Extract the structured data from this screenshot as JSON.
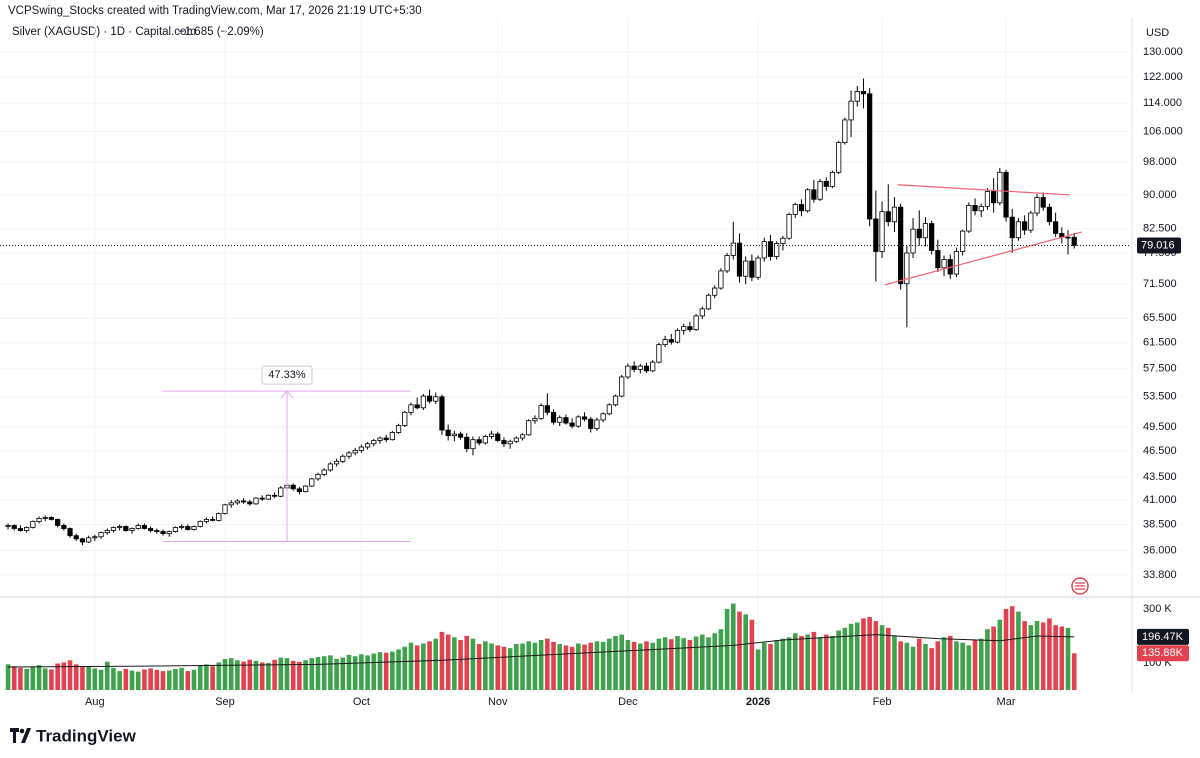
{
  "header": {
    "attribution": "VCPSwing_Stocks created with TradingView.com, Mar 17, 2026 21:19 UTC+5:30",
    "logo": "TradingView"
  },
  "chart_data": {
    "type": "candlestick",
    "title": "Silver (XAGUSD) · 1D · Capital.com",
    "change": "−1.685 (−2.09%)",
    "y_axis_label": "USD",
    "log_scale": true,
    "grid": true,
    "ylim": [
      32.1,
      142
    ],
    "yticks": [
      {
        "value": 130,
        "label": "130.000"
      },
      {
        "value": 122,
        "label": "122.000"
      },
      {
        "value": 114,
        "label": "114.000"
      },
      {
        "value": 106,
        "label": "106.000"
      },
      {
        "value": 98,
        "label": "98.000"
      },
      {
        "value": 90,
        "label": "90.000"
      },
      {
        "value": 82.5,
        "label": "82.500"
      },
      {
        "value": 77.5,
        "label": "77.500"
      },
      {
        "value": 71.5,
        "label": "71.500"
      },
      {
        "value": 65.5,
        "label": "65.500"
      },
      {
        "value": 61.5,
        "label": "61.500"
      },
      {
        "value": 57.5,
        "label": "57.500"
      },
      {
        "value": 53.5,
        "label": "53.500"
      },
      {
        "value": 49.5,
        "label": "49.500"
      },
      {
        "value": 46.5,
        "label": "46.500"
      },
      {
        "value": 43.5,
        "label": "43.500"
      },
      {
        "value": 41,
        "label": "41.000"
      },
      {
        "value": 38.5,
        "label": "38.500"
      },
      {
        "value": 36,
        "label": "36.000"
      },
      {
        "value": 33.8,
        "label": "33.800"
      }
    ],
    "xlim": [
      -1.3,
      181
    ],
    "xticks": [
      {
        "value": 14,
        "label": "Aug"
      },
      {
        "value": 35,
        "label": "Sep"
      },
      {
        "value": 57,
        "label": "Oct"
      },
      {
        "value": 79,
        "label": "Nov"
      },
      {
        "value": 100,
        "label": "Dec"
      },
      {
        "value": 121,
        "label": "2026"
      },
      {
        "value": 141,
        "label": "Feb"
      },
      {
        "value": 161,
        "label": "Mar"
      }
    ],
    "up_color": "#ffffff",
    "down_color": "#000000",
    "outline_color": "#000000",
    "candles": [
      [
        38.3,
        38.6,
        38.0,
        38.4
      ],
      [
        38.4,
        38.5,
        37.9,
        38.1
      ],
      [
        38.1,
        38.4,
        37.8,
        37.9
      ],
      [
        37.9,
        38.3,
        37.7,
        38.2
      ],
      [
        38.2,
        38.9,
        38.1,
        38.8
      ],
      [
        38.8,
        39.3,
        38.6,
        39.1
      ],
      [
        39.1,
        39.4,
        38.8,
        39.2
      ],
      [
        39.2,
        39.3,
        38.9,
        39.0
      ],
      [
        39.0,
        39.1,
        38.2,
        38.4
      ],
      [
        38.4,
        38.6,
        37.9,
        38.1
      ],
      [
        38.1,
        38.2,
        37.2,
        37.4
      ],
      [
        37.4,
        37.6,
        36.9,
        37.1
      ],
      [
        37.1,
        37.2,
        36.5,
        36.8
      ],
      [
        36.8,
        37.4,
        36.7,
        37.2
      ],
      [
        37.2,
        37.5,
        36.9,
        37.3
      ],
      [
        37.3,
        37.8,
        37.1,
        37.7
      ],
      [
        37.7,
        38.1,
        37.5,
        37.9
      ],
      [
        37.9,
        38.3,
        37.7,
        38.2
      ],
      [
        38.2,
        38.5,
        37.9,
        38.3
      ],
      [
        38.3,
        38.4,
        37.8,
        37.9
      ],
      [
        37.9,
        38.2,
        37.6,
        38.1
      ],
      [
        38.1,
        38.6,
        38.0,
        38.4
      ],
      [
        38.4,
        38.6,
        38.0,
        38.1
      ],
      [
        38.1,
        38.3,
        37.7,
        37.9
      ],
      [
        37.9,
        38.1,
        37.6,
        37.8
      ],
      [
        37.8,
        38.0,
        37.4,
        37.6
      ],
      [
        37.6,
        37.9,
        37.3,
        37.8
      ],
      [
        37.8,
        38.3,
        37.7,
        38.2
      ],
      [
        38.2,
        38.5,
        38.0,
        38.3
      ],
      [
        38.3,
        38.5,
        37.9,
        38.0
      ],
      [
        38.0,
        38.4,
        37.9,
        38.3
      ],
      [
        38.3,
        38.9,
        38.2,
        38.8
      ],
      [
        38.8,
        39.2,
        38.6,
        39.0
      ],
      [
        39.0,
        39.3,
        38.8,
        38.9
      ],
      [
        38.9,
        39.7,
        38.8,
        39.6
      ],
      [
        39.6,
        40.6,
        39.5,
        40.5
      ],
      [
        40.5,
        41.0,
        40.2,
        40.7
      ],
      [
        40.7,
        41.1,
        40.5,
        40.9
      ],
      [
        40.9,
        41.2,
        40.6,
        40.8
      ],
      [
        40.8,
        41.0,
        40.4,
        40.6
      ],
      [
        40.6,
        41.3,
        40.5,
        41.2
      ],
      [
        41.2,
        41.5,
        40.9,
        41.1
      ],
      [
        41.1,
        41.6,
        41.0,
        41.5
      ],
      [
        41.5,
        41.8,
        41.2,
        41.4
      ],
      [
        41.4,
        42.5,
        41.3,
        42.3
      ],
      [
        42.3,
        42.9,
        42.1,
        42.6
      ],
      [
        42.6,
        42.8,
        42.0,
        42.2
      ],
      [
        42.2,
        42.4,
        41.6,
        41.9
      ],
      [
        41.9,
        42.6,
        41.8,
        42.5
      ],
      [
        42.5,
        43.4,
        42.4,
        43.3
      ],
      [
        43.3,
        44.0,
        43.1,
        43.8
      ],
      [
        43.8,
        44.5,
        43.6,
        44.3
      ],
      [
        44.3,
        45.2,
        44.1,
        45.0
      ],
      [
        45.0,
        45.6,
        44.7,
        45.3
      ],
      [
        45.3,
        46.1,
        45.1,
        45.9
      ],
      [
        45.9,
        46.5,
        45.6,
        46.3
      ],
      [
        46.3,
        46.9,
        46.0,
        46.6
      ],
      [
        46.6,
        47.3,
        46.3,
        47.0
      ],
      [
        47.0,
        47.6,
        46.7,
        47.4
      ],
      [
        47.4,
        48.0,
        47.1,
        47.8
      ],
      [
        47.8,
        48.3,
        47.4,
        48.1
      ],
      [
        48.1,
        48.5,
        47.6,
        47.9
      ],
      [
        47.9,
        49.0,
        47.8,
        48.8
      ],
      [
        48.8,
        49.9,
        48.6,
        49.7
      ],
      [
        49.7,
        51.6,
        49.5,
        51.4
      ],
      [
        51.4,
        52.7,
        51.0,
        52.4
      ],
      [
        52.4,
        53.4,
        51.8,
        52.0
      ],
      [
        52.0,
        53.9,
        51.7,
        53.6
      ],
      [
        53.6,
        54.5,
        52.6,
        52.9
      ],
      [
        52.9,
        54.1,
        52.5,
        53.5
      ],
      [
        53.5,
        53.8,
        48.5,
        49.1
      ],
      [
        49.1,
        49.8,
        47.8,
        48.4
      ],
      [
        48.4,
        49.0,
        47.7,
        48.6
      ],
      [
        48.6,
        48.9,
        47.9,
        48.2
      ],
      [
        48.2,
        48.7,
        46.4,
        46.8
      ],
      [
        46.8,
        48.3,
        46.0,
        47.9
      ],
      [
        47.9,
        48.3,
        47.2,
        47.5
      ],
      [
        47.5,
        48.5,
        47.3,
        48.3
      ],
      [
        48.3,
        49.0,
        48.0,
        48.6
      ],
      [
        48.6,
        48.9,
        47.6,
        47.8
      ],
      [
        47.8,
        48.2,
        47.0,
        47.4
      ],
      [
        47.4,
        47.9,
        46.8,
        47.7
      ],
      [
        47.7,
        48.3,
        47.5,
        48.1
      ],
      [
        48.1,
        48.7,
        47.8,
        48.5
      ],
      [
        48.5,
        50.5,
        48.4,
        50.3
      ],
      [
        50.3,
        51.0,
        49.9,
        50.6
      ],
      [
        50.6,
        52.6,
        50.4,
        52.3
      ],
      [
        52.3,
        54.0,
        51.0,
        51.4
      ],
      [
        51.4,
        51.8,
        49.8,
        50.1
      ],
      [
        50.1,
        51.0,
        49.6,
        50.7
      ],
      [
        50.7,
        51.1,
        49.8,
        50.0
      ],
      [
        50.0,
        50.6,
        49.3,
        49.6
      ],
      [
        49.6,
        51.0,
        49.4,
        50.8
      ],
      [
        50.8,
        51.4,
        50.2,
        50.5
      ],
      [
        50.5,
        50.8,
        48.8,
        49.3
      ],
      [
        49.3,
        50.7,
        49.0,
        50.4
      ],
      [
        50.4,
        51.4,
        50.1,
        51.2
      ],
      [
        51.2,
        52.6,
        51.0,
        52.4
      ],
      [
        52.4,
        53.8,
        52.2,
        53.6
      ],
      [
        53.6,
        56.6,
        53.4,
        56.3
      ],
      [
        56.3,
        58.3,
        56.0,
        57.9
      ],
      [
        57.9,
        58.6,
        57.0,
        57.4
      ],
      [
        57.4,
        58.2,
        56.8,
        57.9
      ],
      [
        57.9,
        58.4,
        56.9,
        57.2
      ],
      [
        57.2,
        58.8,
        57.0,
        58.5
      ],
      [
        58.5,
        61.5,
        58.3,
        61.2
      ],
      [
        61.2,
        62.6,
        60.8,
        62.0
      ],
      [
        62.0,
        62.9,
        61.2,
        61.6
      ],
      [
        61.6,
        63.8,
        61.4,
        63.5
      ],
      [
        63.5,
        64.6,
        62.8,
        64.1
      ],
      [
        64.1,
        64.9,
        63.2,
        63.6
      ],
      [
        63.6,
        66.2,
        63.4,
        65.9
      ],
      [
        65.9,
        67.5,
        65.4,
        67.1
      ],
      [
        67.1,
        69.8,
        66.9,
        69.5
      ],
      [
        69.5,
        71.3,
        69.0,
        70.8
      ],
      [
        70.8,
        74.5,
        70.5,
        74.0
      ],
      [
        74.0,
        77.5,
        73.6,
        77.0
      ],
      [
        77.0,
        84.0,
        76.2,
        79.5
      ],
      [
        79.5,
        81.5,
        71.8,
        73.0
      ],
      [
        73.0,
        76.8,
        71.5,
        75.9
      ],
      [
        75.9,
        77.2,
        72.1,
        72.8
      ],
      [
        72.8,
        77.0,
        72.3,
        76.5
      ],
      [
        76.5,
        80.6,
        75.8,
        79.8
      ],
      [
        79.8,
        81.2,
        76.0,
        76.8
      ],
      [
        76.8,
        79.9,
        76.2,
        79.4
      ],
      [
        79.4,
        81.0,
        78.0,
        80.5
      ],
      [
        80.5,
        86.0,
        80.2,
        85.6
      ],
      [
        85.6,
        88.2,
        84.8,
        87.8
      ],
      [
        87.8,
        89.0,
        85.2,
        86.4
      ],
      [
        86.4,
        91.6,
        86.0,
        91.2
      ],
      [
        91.2,
        93.6,
        88.2,
        89.0
      ],
      [
        89.0,
        93.8,
        88.6,
        93.2
      ],
      [
        93.2,
        94.2,
        91.0,
        92.0
      ],
      [
        92.0,
        95.8,
        91.6,
        95.4
      ],
      [
        95.4,
        103.5,
        95.0,
        103.0
      ],
      [
        103.0,
        109.8,
        102.5,
        109.2
      ],
      [
        109.2,
        117.8,
        104.5,
        114.6
      ],
      [
        114.6,
        119.2,
        113.0,
        117.5
      ],
      [
        117.5,
        121.5,
        112.5,
        116.8
      ],
      [
        116.8,
        118.6,
        83.0,
        84.6
      ],
      [
        84.6,
        91.0,
        72.0,
        77.8
      ],
      [
        77.8,
        88.5,
        76.5,
        86.2
      ],
      [
        86.2,
        92.5,
        83.0,
        84.0
      ],
      [
        84.0,
        89.5,
        81.8,
        87.2
      ],
      [
        87.2,
        88.0,
        70.5,
        71.6
      ],
      [
        71.6,
        79.0,
        64.0,
        77.5
      ],
      [
        77.5,
        84.8,
        76.5,
        82.4
      ],
      [
        82.4,
        86.5,
        79.0,
        80.6
      ],
      [
        80.6,
        85.0,
        78.8,
        83.6
      ],
      [
        83.6,
        84.2,
        77.2,
        78.0
      ],
      [
        78.0,
        80.2,
        73.8,
        74.6
      ],
      [
        74.6,
        77.0,
        73.0,
        76.2
      ],
      [
        76.2,
        77.2,
        72.5,
        73.4
      ],
      [
        73.4,
        78.6,
        72.8,
        77.8
      ],
      [
        77.8,
        82.3,
        77.0,
        82.0
      ],
      [
        82.0,
        88.3,
        81.6,
        87.6
      ],
      [
        87.6,
        89.2,
        85.4,
        86.4
      ],
      [
        86.4,
        88.0,
        85.0,
        87.4
      ],
      [
        87.4,
        91.6,
        86.6,
        90.8
      ],
      [
        90.8,
        94.0,
        86.0,
        88.2
      ],
      [
        88.2,
        96.5,
        87.6,
        95.4
      ],
      [
        95.4,
        96.0,
        84.0,
        85.0
      ],
      [
        85.0,
        86.8,
        77.5,
        80.6
      ],
      [
        80.6,
        84.8,
        80.0,
        84.0
      ],
      [
        84.0,
        85.4,
        81.2,
        82.2
      ],
      [
        82.2,
        86.4,
        81.6,
        85.9
      ],
      [
        85.9,
        90.2,
        85.2,
        89.4
      ],
      [
        89.4,
        90.6,
        86.4,
        87.2
      ],
      [
        87.2,
        88.0,
        83.2,
        84.0
      ],
      [
        84.0,
        86.0,
        80.8,
        81.5
      ],
      [
        81.5,
        82.8,
        79.4,
        80.7
      ],
      [
        80.7,
        82.2,
        77.2,
        80.701
      ],
      [
        80.701,
        81.6,
        78.4,
        79.016
      ]
    ],
    "last_price_label": "79.016",
    "volume": {
      "up_color": "#3fa34d",
      "down_color": "#e2424f",
      "ylim": [
        0,
        333
      ],
      "yticks": [
        {
          "value": 300,
          "label": "300 K"
        },
        {
          "value": 100,
          "label": "100 K"
        }
      ],
      "values": [
        95,
        88,
        82,
        78,
        85,
        92,
        80,
        76,
        98,
        102,
        110,
        95,
        88,
        85,
        80,
        75,
        105,
        82,
        70,
        78,
        72,
        68,
        76,
        80,
        74,
        70,
        72,
        78,
        82,
        70,
        75,
        90,
        95,
        88,
        102,
        115,
        118,
        110,
        105,
        112,
        108,
        102,
        100,
        112,
        120,
        118,
        108,
        104,
        110,
        118,
        122,
        125,
        128,
        115,
        120,
        130,
        125,
        132,
        128,
        135,
        140,
        138,
        142,
        150,
        160,
        175,
        165,
        172,
        180,
        190,
        215,
        205,
        195,
        185,
        200,
        190,
        170,
        180,
        172,
        165,
        160,
        155,
        170,
        172,
        180,
        175,
        185,
        190,
        178,
        170,
        165,
        160,
        172,
        168,
        175,
        180,
        178,
        190,
        200,
        205,
        185,
        178,
        172,
        180,
        175,
        190,
        195,
        188,
        200,
        192,
        185,
        198,
        205,
        195,
        210,
        225,
        300,
        320,
        290,
        280,
        260,
        150,
        175,
        170,
        185,
        190,
        195,
        210,
        200,
        205,
        215,
        195,
        205,
        200,
        220,
        230,
        245,
        250,
        265,
        270,
        255,
        240,
        230,
        200,
        180,
        175,
        160,
        190,
        170,
        155,
        180,
        195,
        200,
        180,
        175,
        165,
        185,
        190,
        225,
        235,
        260,
        300,
        310,
        290,
        255,
        240,
        255,
        250,
        265,
        240,
        235,
        230,
        135.88
      ],
      "last_label": "135.88K",
      "ma": {
        "color": "#1a1a1a",
        "x": [
          0,
          20,
          50,
          70,
          100,
          117,
          125,
          140,
          150,
          160,
          166,
          172
        ],
        "values": [
          85,
          88,
          95,
          110,
          145,
          165,
          185,
          205,
          190,
          182,
          200,
          196.47
        ],
        "last_label": "196.47K"
      }
    },
    "annotations": [
      {
        "type": "measure",
        "x": [
          25,
          65
        ],
        "values": [
          36.85,
          54.29
        ],
        "label": "47.33%",
        "color": "#e4a8f0"
      },
      {
        "type": "trendline",
        "x": [
          143.5,
          171.3
        ],
        "values": [
          92.4,
          90.0
        ],
        "color": "#f06070"
      },
      {
        "type": "trendline",
        "x": [
          141.5,
          173.2
        ],
        "values": [
          71.4,
          81.8
        ],
        "color": "#f06070"
      }
    ]
  }
}
